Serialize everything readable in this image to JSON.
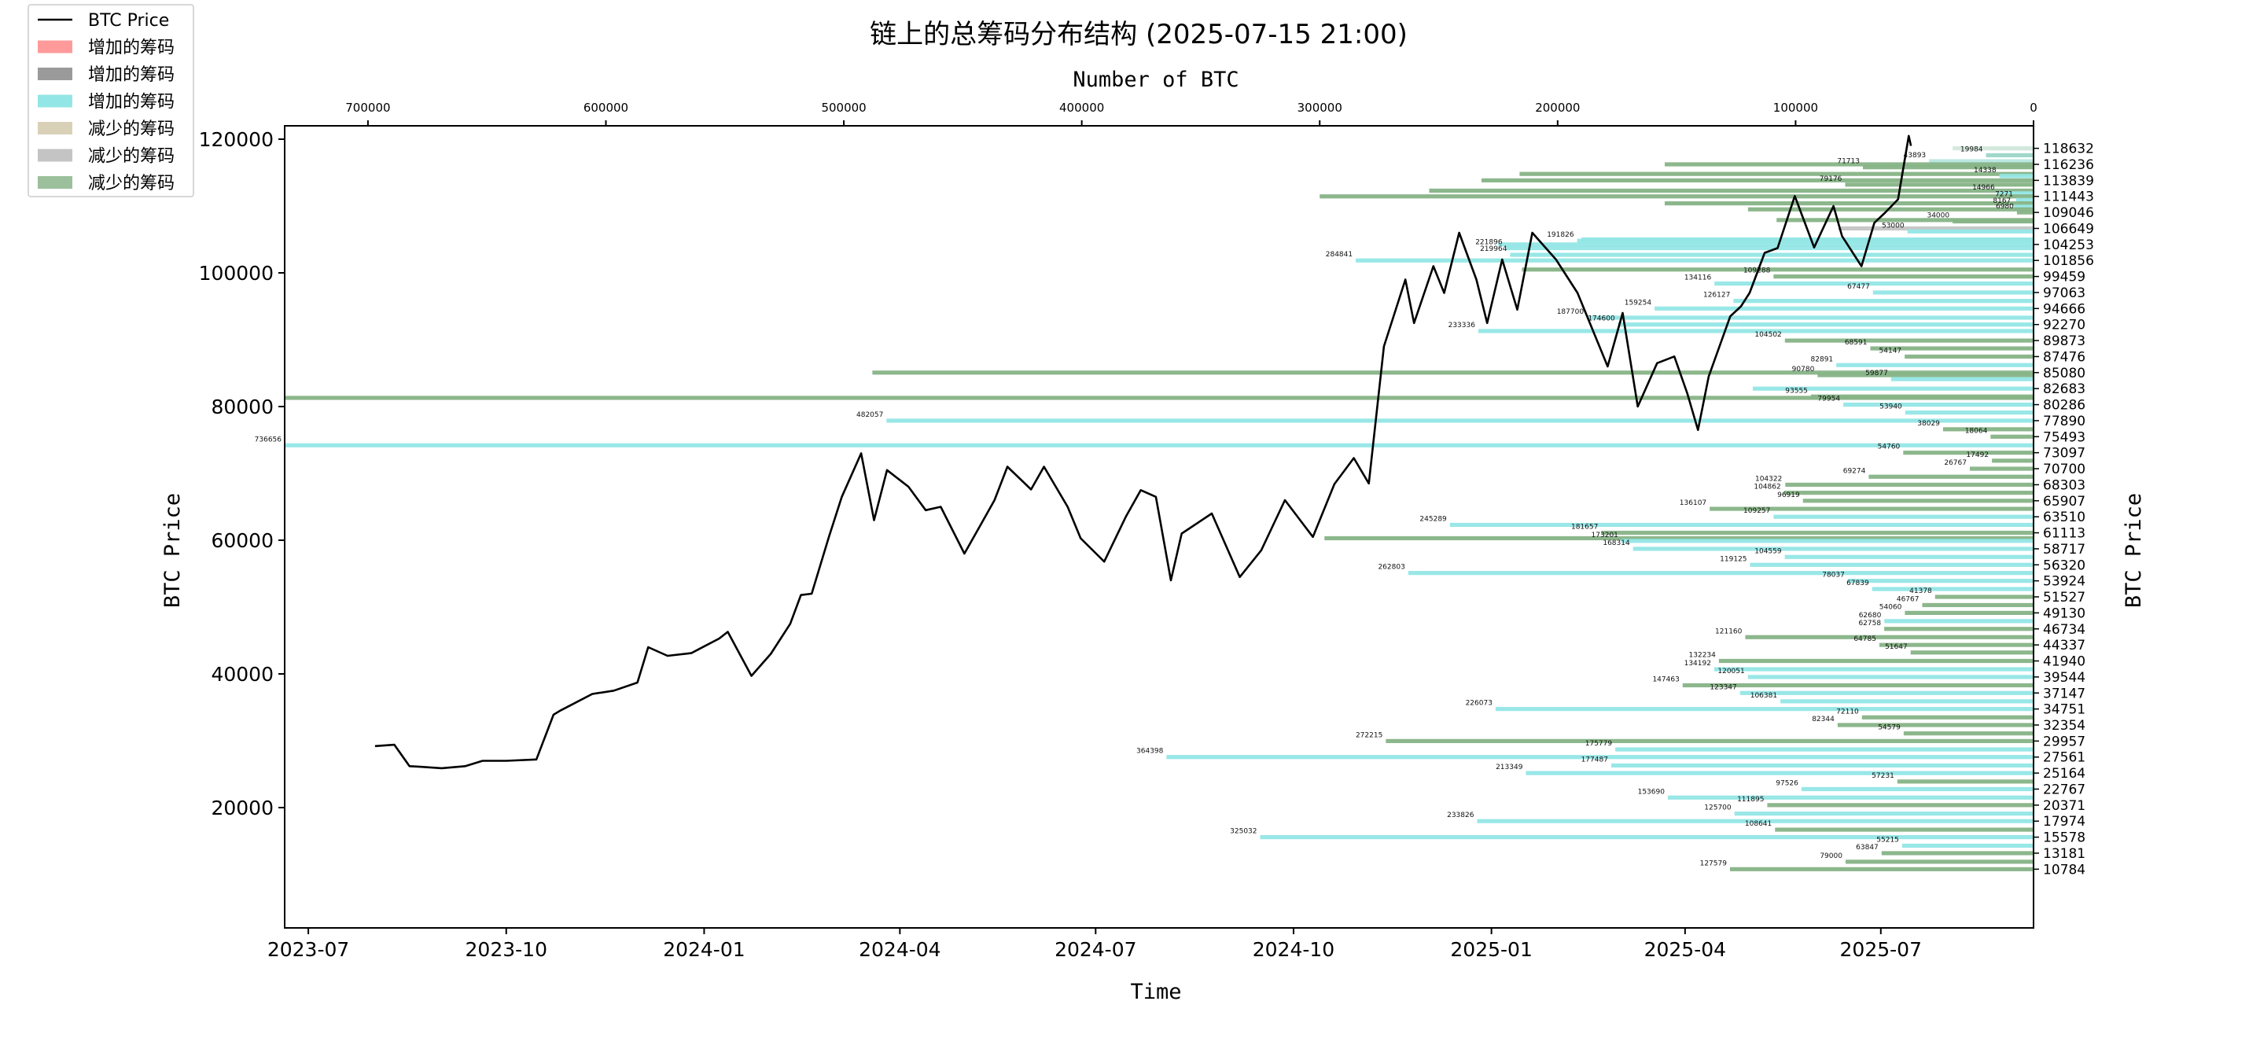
{
  "chart_data": {
    "type": "line",
    "title": "链上的总筹码分布结构 (2025-07-15 21:00)",
    "xlabel": "Time",
    "ylabel": "BTC Price",
    "ylabel_right": "BTC Price",
    "top_xlabel": "Number of BTC",
    "ylim": [
      2000,
      122000
    ],
    "xlim": [
      "2023-06-20",
      "2025-09-10"
    ],
    "top_xlim": [
      735000,
      0
    ],
    "grid": false,
    "legend_position": "top-left",
    "legend": [
      {
        "label": "BTC Price",
        "kind": "line",
        "color": "#000000"
      },
      {
        "label": "增加的筹码",
        "kind": "patch",
        "color": "#ff9a9a"
      },
      {
        "label": "增加的筹码",
        "kind": "patch",
        "color": "#9a9a9a"
      },
      {
        "label": "增加的筹码",
        "kind": "patch",
        "color": "#93e6e6"
      },
      {
        "label": "减少的筹码",
        "kind": "patch",
        "color": "#d8d1b8"
      },
      {
        "label": "减少的筹码",
        "kind": "patch",
        "color": "#c4c4c4"
      },
      {
        "label": "减少的筹码",
        "kind": "patch",
        "color": "#9cbf9c"
      }
    ],
    "x_tick_labels": [
      "2023-07",
      "2023-10",
      "2024-01",
      "2024-04",
      "2024-07",
      "2024-10",
      "2025-01",
      "2025-04",
      "2025-07"
    ],
    "x_tick_dates": [
      "2023-07-01",
      "2023-10-01",
      "2024-01-01",
      "2024-04-01",
      "2024-07-01",
      "2024-10-01",
      "2025-01-01",
      "2025-04-01",
      "2025-07-01"
    ],
    "y_ticks": [
      20000,
      40000,
      60000,
      80000,
      100000,
      120000
    ],
    "top_x_ticks": [
      700000,
      600000,
      500000,
      400000,
      300000,
      200000,
      100000,
      0
    ],
    "right_price_levels": [
      118632,
      116236,
      113839,
      111443,
      109046,
      106649,
      104253,
      101856,
      99459,
      97063,
      94666,
      92270,
      89873,
      87476,
      85080,
      82683,
      80286,
      77890,
      75493,
      73097,
      70700,
      68303,
      65907,
      63510,
      61113,
      58717,
      56320,
      53924,
      51527,
      49130,
      46734,
      44337,
      41940,
      39544,
      37147,
      34751,
      32354,
      29957,
      27561,
      25164,
      22767,
      20371,
      17974,
      15578,
      13181,
      10784
    ],
    "price_series": {
      "name": "BTC Price",
      "x": [
        "2023-08-01",
        "2023-08-10",
        "2023-08-17",
        "2023-08-22",
        "2023-09-01",
        "2023-09-12",
        "2023-09-20",
        "2023-10-01",
        "2023-10-15",
        "2023-10-23",
        "2023-10-26",
        "2023-11-10",
        "2023-11-20",
        "2023-12-01",
        "2023-12-06",
        "2023-12-15",
        "2023-12-26",
        "2024-01-08",
        "2024-01-12",
        "2024-01-23",
        "2024-02-01",
        "2024-02-10",
        "2024-02-15",
        "2024-02-20",
        "2024-02-28",
        "2024-03-05",
        "2024-03-14",
        "2024-03-20",
        "2024-03-26",
        "2024-04-05",
        "2024-04-13",
        "2024-04-20",
        "2024-05-01",
        "2024-05-08",
        "2024-05-15",
        "2024-05-21",
        "2024-06-01",
        "2024-06-07",
        "2024-06-18",
        "2024-06-24",
        "2024-07-05",
        "2024-07-15",
        "2024-07-22",
        "2024-07-29",
        "2024-08-05",
        "2024-08-10",
        "2024-08-24",
        "2024-09-06",
        "2024-09-16",
        "2024-09-27",
        "2024-10-10",
        "2024-10-20",
        "2024-10-29",
        "2024-11-05",
        "2024-11-12",
        "2024-11-22",
        "2024-11-26",
        "2024-12-05",
        "2024-12-10",
        "2024-12-17",
        "2024-12-25",
        "2024-12-30",
        "2025-01-06",
        "2025-01-13",
        "2025-01-20",
        "2025-01-31",
        "2025-02-10",
        "2025-02-24",
        "2025-03-03",
        "2025-03-10",
        "2025-03-19",
        "2025-03-27",
        "2025-04-02",
        "2025-04-07",
        "2025-04-12",
        "2025-04-22",
        "2025-04-27",
        "2025-05-01",
        "2025-05-08",
        "2025-05-14",
        "2025-05-22",
        "2025-05-31",
        "2025-06-09",
        "2025-06-13",
        "2025-06-22",
        "2025-06-28",
        "2025-07-03",
        "2025-07-09",
        "2025-07-14",
        "2025-07-15"
      ],
      "values": [
        29200,
        29400,
        26200,
        26100,
        25900,
        26200,
        27000,
        27000,
        27200,
        33900,
        34500,
        37000,
        37500,
        38700,
        44000,
        42700,
        43100,
        45300,
        46300,
        39700,
        43000,
        47500,
        51800,
        52000,
        60500,
        66500,
        73000,
        63000,
        70500,
        68000,
        64500,
        65000,
        58000,
        62000,
        66000,
        71000,
        67600,
        71000,
        65000,
        60300,
        56800,
        63500,
        67500,
        66500,
        54000,
        61000,
        64000,
        54500,
        58500,
        66000,
        60500,
        68400,
        72300,
        68500,
        89000,
        99000,
        92500,
        101000,
        97000,
        106000,
        99000,
        92500,
        102000,
        94500,
        106000,
        102000,
        97000,
        86000,
        94000,
        80000,
        86500,
        87500,
        82000,
        76500,
        84500,
        93500,
        95000,
        97000,
        103000,
        103700,
        111500,
        103800,
        110000,
        105500,
        101000,
        107500,
        109000,
        111000,
        120500,
        119000
      ]
    },
    "chip_bars": [
      {
        "price": 118632,
        "btc": 18000,
        "label": "",
        "color": "#a8ddd4"
      },
      {
        "price": 118632,
        "btc": 34000,
        "label": "",
        "color": "#d4e8dc"
      },
      {
        "price": 117600,
        "btc": 19984,
        "label": "19984",
        "color": "#9ad6c8"
      },
      {
        "price": 116700,
        "btc": 43893,
        "label": "43893",
        "color": "#b8e6e0"
      },
      {
        "price": 116236,
        "btc": 155000,
        "label": "",
        "color": "#86b386"
      },
      {
        "price": 115800,
        "btc": 71713,
        "label": "71713",
        "color": "#86b386"
      },
      {
        "price": 114800,
        "btc": 216000,
        "label": "",
        "color": "#86b386"
      },
      {
        "price": 114500,
        "btc": 14338,
        "label": "14338",
        "color": "#93e6e6"
      },
      {
        "price": 113839,
        "btc": 232000,
        "label": "",
        "color": "#86b386"
      },
      {
        "price": 113200,
        "btc": 79176,
        "label": "79176",
        "color": "#86b386"
      },
      {
        "price": 112300,
        "btc": 254000,
        "label": "",
        "color": "#86b386"
      },
      {
        "price": 111900,
        "btc": 14966,
        "label": "14966",
        "color": "#93e6e6"
      },
      {
        "price": 111443,
        "btc": 300000,
        "label": "",
        "color": "#86b386"
      },
      {
        "price": 110900,
        "btc": 7271,
        "label": "7271",
        "color": "#93e6e6"
      },
      {
        "price": 110400,
        "btc": 155000,
        "label": "",
        "color": "#86b386"
      },
      {
        "price": 109900,
        "btc": 8167,
        "label": "8167",
        "color": "#93e6e6"
      },
      {
        "price": 109500,
        "btc": 120000,
        "label": "",
        "color": "#86b386"
      },
      {
        "price": 109046,
        "btc": 6980,
        "label": "6980",
        "color": "#86b386"
      },
      {
        "price": 107900,
        "btc": 108000,
        "label": "",
        "color": "#86b386"
      },
      {
        "price": 107700,
        "btc": 34000,
        "label": "34000",
        "color": "#86b386"
      },
      {
        "price": 106649,
        "btc": 82000,
        "label": "",
        "color": "#c4c4c4"
      },
      {
        "price": 106200,
        "btc": 53000,
        "label": "53000",
        "color": "#93e6e6"
      },
      {
        "price": 105000,
        "btc": 190000,
        "label": "",
        "color": "#93e6e6"
      },
      {
        "price": 104800,
        "btc": 191826,
        "label": "191826",
        "color": "#93e6e6"
      },
      {
        "price": 104253,
        "btc": 225000,
        "label": "",
        "color": "#93e6e6"
      },
      {
        "price": 103700,
        "btc": 221896,
        "label": "221896",
        "color": "#93e6e6"
      },
      {
        "price": 102700,
        "btc": 219964,
        "label": "219964",
        "color": "#93e6e6"
      },
      {
        "price": 101856,
        "btc": 284841,
        "label": "284841",
        "color": "#93e6e6"
      },
      {
        "price": 100500,
        "btc": 215000,
        "label": "",
        "color": "#86b386"
      },
      {
        "price": 99459,
        "btc": 109288,
        "label": "109288",
        "color": "#86b386"
      },
      {
        "price": 98400,
        "btc": 134116,
        "label": "134116",
        "color": "#93e6e6"
      },
      {
        "price": 97063,
        "btc": 67477,
        "label": "67477",
        "color": "#93e6e6"
      },
      {
        "price": 95800,
        "btc": 126127,
        "label": "126127",
        "color": "#93e6e6"
      },
      {
        "price": 94666,
        "btc": 159254,
        "label": "159254",
        "color": "#93e6e6"
      },
      {
        "price": 93300,
        "btc": 187700,
        "label": "187700",
        "color": "#93e6e6"
      },
      {
        "price": 92270,
        "btc": 174600,
        "label": "174600",
        "color": "#93e6e6"
      },
      {
        "price": 91300,
        "btc": 233336,
        "label": "233336",
        "color": "#93e6e6"
      },
      {
        "price": 89873,
        "btc": 104502,
        "label": "104502",
        "color": "#86b386"
      },
      {
        "price": 88700,
        "btc": 68591,
        "label": "68591",
        "color": "#86b386"
      },
      {
        "price": 87476,
        "btc": 54147,
        "label": "54147",
        "color": "#86b386"
      },
      {
        "price": 86200,
        "btc": 82891,
        "label": "82891",
        "color": "#93e6e6"
      },
      {
        "price": 85080,
        "btc": 488000,
        "label": "",
        "color": "#86b386"
      },
      {
        "price": 84700,
        "btc": 90780,
        "label": "90780",
        "color": "#86b386"
      },
      {
        "price": 84100,
        "btc": 59877,
        "label": "59877",
        "color": "#93e6e6"
      },
      {
        "price": 82683,
        "btc": 118000,
        "label": "",
        "color": "#93e6e6"
      },
      {
        "price": 81500,
        "btc": 93555,
        "label": "93555",
        "color": "#86b386"
      },
      {
        "price": 81300,
        "btc": 735000,
        "label": "",
        "color": "#86b386"
      },
      {
        "price": 80286,
        "btc": 79954,
        "label": "79954",
        "color": "#93e6e6"
      },
      {
        "price": 79100,
        "btc": 53940,
        "label": "53940",
        "color": "#93e6e6"
      },
      {
        "price": 77890,
        "btc": 482057,
        "label": "482057",
        "color": "#93e6e6"
      },
      {
        "price": 76600,
        "btc": 38029,
        "label": "38029",
        "color": "#86b386"
      },
      {
        "price": 75493,
        "btc": 18064,
        "label": "18064",
        "color": "#86b386"
      },
      {
        "price": 74200,
        "btc": 736656,
        "label": "736656",
        "color": "#93e6e6"
      },
      {
        "price": 73097,
        "btc": 54760,
        "label": "54760",
        "color": "#86b386"
      },
      {
        "price": 71900,
        "btc": 17492,
        "label": "17492",
        "color": "#86b386"
      },
      {
        "price": 70700,
        "btc": 26767,
        "label": "26767",
        "color": "#86b386"
      },
      {
        "price": 69500,
        "btc": 69274,
        "label": "69274",
        "color": "#86b386"
      },
      {
        "price": 68303,
        "btc": 104322,
        "label": "104322",
        "color": "#86b386"
      },
      {
        "price": 67100,
        "btc": 104862,
        "label": "104862",
        "color": "#86b386"
      },
      {
        "price": 65907,
        "btc": 96919,
        "label": "96919",
        "color": "#86b386"
      },
      {
        "price": 64700,
        "btc": 136107,
        "label": "136107",
        "color": "#86b386"
      },
      {
        "price": 63510,
        "btc": 109257,
        "label": "109257",
        "color": "#93e6e6"
      },
      {
        "price": 62300,
        "btc": 245289,
        "label": "245289",
        "color": "#93e6e6"
      },
      {
        "price": 61113,
        "btc": 181657,
        "label": "181657",
        "color": "#86b386"
      },
      {
        "price": 60300,
        "btc": 298000,
        "label": "",
        "color": "#86b386"
      },
      {
        "price": 59900,
        "btc": 173201,
        "label": "173201",
        "color": "#93e6e6"
      },
      {
        "price": 58717,
        "btc": 168314,
        "label": "168314",
        "color": "#93e6e6"
      },
      {
        "price": 57500,
        "btc": 104559,
        "label": "104559",
        "color": "#93e6e6"
      },
      {
        "price": 56320,
        "btc": 119125,
        "label": "119125",
        "color": "#93e6e6"
      },
      {
        "price": 55100,
        "btc": 262803,
        "label": "262803",
        "color": "#93e6e6"
      },
      {
        "price": 53924,
        "btc": 78037,
        "label": "78037",
        "color": "#93e6e6"
      },
      {
        "price": 52700,
        "btc": 67839,
        "label": "67839",
        "color": "#93e6e6"
      },
      {
        "price": 51527,
        "btc": 41378,
        "label": "41378",
        "color": "#86b386"
      },
      {
        "price": 50300,
        "btc": 46767,
        "label": "46767",
        "color": "#86b386"
      },
      {
        "price": 49130,
        "btc": 54060,
        "label": "54060",
        "color": "#86b386"
      },
      {
        "price": 47900,
        "btc": 62680,
        "label": "62680",
        "color": "#93e6e6"
      },
      {
        "price": 46734,
        "btc": 62758,
        "label": "62758",
        "color": "#86b386"
      },
      {
        "price": 45500,
        "btc": 121160,
        "label": "121160",
        "color": "#86b386"
      },
      {
        "price": 44337,
        "btc": 64785,
        "label": "64785",
        "color": "#86b386"
      },
      {
        "price": 43200,
        "btc": 51647,
        "label": "51647",
        "color": "#86b386"
      },
      {
        "price": 41940,
        "btc": 132234,
        "label": "132234",
        "color": "#86b386"
      },
      {
        "price": 40700,
        "btc": 134192,
        "label": "134192",
        "color": "#93e6e6"
      },
      {
        "price": 39544,
        "btc": 120051,
        "label": "120051",
        "color": "#93e6e6"
      },
      {
        "price": 38300,
        "btc": 147463,
        "label": "147463",
        "color": "#86b386"
      },
      {
        "price": 37147,
        "btc": 123347,
        "label": "123347",
        "color": "#93e6e6"
      },
      {
        "price": 35900,
        "btc": 106381,
        "label": "106381",
        "color": "#93e6e6"
      },
      {
        "price": 34751,
        "btc": 226073,
        "label": "226073",
        "color": "#93e6e6"
      },
      {
        "price": 33500,
        "btc": 72110,
        "label": "72110",
        "color": "#86b386"
      },
      {
        "price": 32354,
        "btc": 82344,
        "label": "82344",
        "color": "#86b386"
      },
      {
        "price": 31100,
        "btc": 54579,
        "label": "54579",
        "color": "#86b386"
      },
      {
        "price": 29957,
        "btc": 272215,
        "label": "272215",
        "color": "#86b386"
      },
      {
        "price": 28700,
        "btc": 175779,
        "label": "175779",
        "color": "#93e6e6"
      },
      {
        "price": 27561,
        "btc": 364398,
        "label": "364398",
        "color": "#93e6e6"
      },
      {
        "price": 26300,
        "btc": 177487,
        "label": "177487",
        "color": "#93e6e6"
      },
      {
        "price": 25164,
        "btc": 213349,
        "label": "213349",
        "color": "#93e6e6"
      },
      {
        "price": 23900,
        "btc": 57231,
        "label": "57231",
        "color": "#86b386"
      },
      {
        "price": 22767,
        "btc": 97526,
        "label": "97526",
        "color": "#93e6e6"
      },
      {
        "price": 21500,
        "btc": 153690,
        "label": "153690",
        "color": "#93e6e6"
      },
      {
        "price": 20371,
        "btc": 111895,
        "label": "111895",
        "color": "#86b386"
      },
      {
        "price": 19100,
        "btc": 125700,
        "label": "125700",
        "color": "#93e6e6"
      },
      {
        "price": 17974,
        "btc": 233826,
        "label": "233826",
        "color": "#93e6e6"
      },
      {
        "price": 16700,
        "btc": 108641,
        "label": "108641",
        "color": "#86b386"
      },
      {
        "price": 15578,
        "btc": 325032,
        "label": "325032",
        "color": "#93e6e6"
      },
      {
        "price": 14300,
        "btc": 55215,
        "label": "55215",
        "color": "#93e6e6"
      },
      {
        "price": 13181,
        "btc": 63847,
        "label": "63847",
        "color": "#86b386"
      },
      {
        "price": 11900,
        "btc": 79000,
        "label": "79000",
        "color": "#86b386"
      },
      {
        "price": 10784,
        "btc": 127579,
        "label": "127579",
        "color": "#86b386"
      }
    ]
  }
}
